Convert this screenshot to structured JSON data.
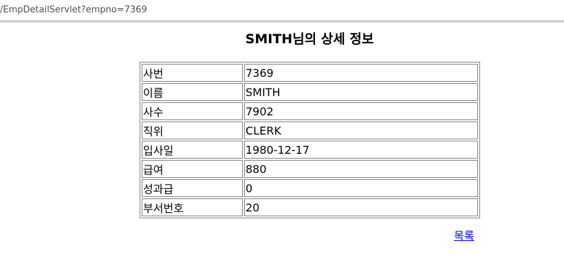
{
  "browser": {
    "address": "/EmpDetailServlet?empno=7369"
  },
  "page": {
    "title": "SMITH님의 상세 정보",
    "rows": [
      {
        "label": "사번",
        "value": "7369"
      },
      {
        "label": "이름",
        "value": "SMITH"
      },
      {
        "label": "사수",
        "value": "7902"
      },
      {
        "label": "직위",
        "value": "CLERK"
      },
      {
        "label": "입사일",
        "value": "1980-12-17"
      },
      {
        "label": "급여",
        "value": "880"
      },
      {
        "label": "성과급",
        "value": "0"
      },
      {
        "label": "부서번호",
        "value": "20"
      }
    ],
    "list_link": "목록"
  },
  "colors": {
    "link": "#0000ee",
    "border": "#808080"
  }
}
